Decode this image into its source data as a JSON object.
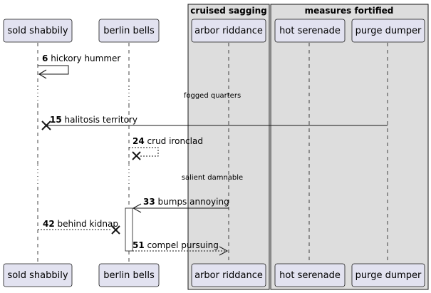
{
  "participants": [
    {
      "id": "p1",
      "label": "sold shabbily"
    },
    {
      "id": "p2",
      "label": "berlin bells"
    },
    {
      "id": "p3",
      "label": "arbor riddance"
    },
    {
      "id": "p4",
      "label": "hot serenade"
    },
    {
      "id": "p5",
      "label": "purge dumper"
    }
  ],
  "boxes": [
    {
      "label": "cruised sagging",
      "members": [
        "p3"
      ]
    },
    {
      "label": "measures fortified",
      "members": [
        "p4",
        "p5"
      ]
    }
  ],
  "messages": [
    {
      "seq": "6",
      "text": "hickory hummer",
      "from": "p1",
      "to": "p1",
      "style": "solid",
      "end": "arrow"
    },
    {
      "seq": "15",
      "text": "halitosis territory",
      "from": "p5",
      "to": "p1",
      "style": "solid",
      "end": "destroy"
    },
    {
      "seq": "24",
      "text": "crud ironclad",
      "from": "p2",
      "to": "p2",
      "style": "dashed",
      "end": "destroy"
    },
    {
      "seq": "33",
      "text": "bumps annoying",
      "from": "p3",
      "to": "p2",
      "style": "solid",
      "end": "open-arrow"
    },
    {
      "seq": "42",
      "text": "behind kidnap",
      "from": "p1",
      "to": "p2",
      "style": "dashed",
      "end": "destroy"
    },
    {
      "seq": "51",
      "text": "compel pursuing",
      "from": "p2",
      "to": "p3",
      "style": "dashed",
      "end": "open-arrow"
    }
  ],
  "delays": [
    {
      "text": "fogged quarters"
    },
    {
      "text": "salient damnable"
    }
  ],
  "colors": {
    "participant_fill": "#E2E2F0",
    "participant_border": "#181818",
    "box_fill": "#DDDDDD",
    "lifeline": "#181818"
  }
}
